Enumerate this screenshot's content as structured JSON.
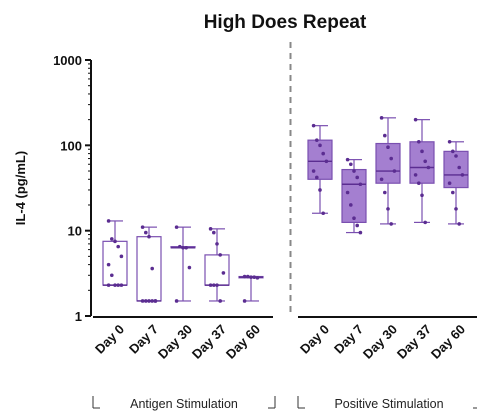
{
  "chart_data": {
    "type": "box",
    "title": "High Does Repeat",
    "ylabel": "IL-4 (pg/mL)",
    "xlabel": "",
    "y_scale": "log",
    "ylim": [
      1,
      1000
    ],
    "y_ticks": [
      "1",
      "10",
      "100",
      "1000"
    ],
    "grid": false,
    "legend": "none",
    "colors": {
      "accent": "#7a4fb0",
      "accent_dark": "#5b2d91",
      "fill_positive": "#a47fd0",
      "divider": "#888888",
      "axis": "#111111"
    },
    "groups": [
      {
        "label": "Antigen Stimulation",
        "range": [
          0,
          4
        ]
      },
      {
        "label": "Positive Stimulation",
        "range": [
          5,
          9
        ]
      }
    ],
    "categories": [
      "Day 0",
      "Day 7",
      "Day 30",
      "Day 37",
      "Day 60",
      "Day 0",
      "Day 7",
      "Day 30",
      "Day 37",
      "Day 60"
    ],
    "boxes": [
      {
        "group": "Antigen Stimulation",
        "min": 2.3,
        "q1": 2.3,
        "median": 2.3,
        "q3": 7.5,
        "max": 13,
        "filled": false,
        "points": [
          13,
          8,
          7.5,
          6.5,
          5,
          4,
          3,
          2.3,
          2.3,
          2.3,
          2.3
        ]
      },
      {
        "group": "Antigen Stimulation",
        "min": 1.5,
        "q1": 1.5,
        "median": 1.5,
        "q3": 8.5,
        "max": 11,
        "filled": false,
        "points": [
          11,
          9.5,
          8.5,
          3.6,
          1.5,
          1.5,
          1.5,
          1.5,
          1.5,
          1.5
        ]
      },
      {
        "group": "Antigen Stimulation",
        "min": 1.5,
        "q1": 6.3,
        "median": 6.3,
        "q3": 6.5,
        "max": 11,
        "filled": false,
        "points": [
          11,
          6.5,
          6.3,
          6.3,
          3.7,
          1.5
        ]
      },
      {
        "group": "Antigen Stimulation",
        "min": 1.5,
        "q1": 2.3,
        "median": 2.3,
        "q3": 5.2,
        "max": 10.5,
        "filled": false,
        "points": [
          10.5,
          9.5,
          7,
          5.2,
          3.2,
          2.3,
          2.3,
          2.3,
          1.5
        ]
      },
      {
        "group": "Antigen Stimulation",
        "min": 1.5,
        "q1": 2.8,
        "median": 2.85,
        "q3": 2.9,
        "max": 2.9,
        "filled": false,
        "points": [
          2.9,
          2.9,
          2.85,
          2.85,
          2.8,
          1.5
        ]
      },
      {
        "group": "Positive Stimulation",
        "min": 16,
        "q1": 40,
        "median": 65,
        "q3": 115,
        "max": 170,
        "filled": true,
        "points": [
          170,
          115,
          100,
          80,
          65,
          50,
          42,
          30,
          16
        ]
      },
      {
        "group": "Positive Stimulation",
        "min": 9.5,
        "q1": 12.5,
        "median": 35,
        "q3": 52,
        "max": 68,
        "filled": true,
        "points": [
          68,
          60,
          50,
          42,
          35,
          28,
          20,
          14,
          11.5,
          9.5
        ]
      },
      {
        "group": "Positive Stimulation",
        "min": 12,
        "q1": 36,
        "median": 50,
        "q3": 105,
        "max": 210,
        "filled": true,
        "points": [
          210,
          130,
          95,
          70,
          50,
          40,
          28,
          18,
          12
        ]
      },
      {
        "group": "Positive Stimulation",
        "min": 12.5,
        "q1": 36,
        "median": 55,
        "q3": 110,
        "max": 200,
        "filled": true,
        "points": [
          200,
          110,
          85,
          65,
          55,
          45,
          36,
          26,
          12.5
        ]
      },
      {
        "group": "Positive Stimulation",
        "min": 12,
        "q1": 32,
        "median": 45,
        "q3": 85,
        "max": 110,
        "filled": true,
        "points": [
          110,
          85,
          75,
          55,
          45,
          36,
          28,
          18,
          12
        ]
      }
    ]
  }
}
